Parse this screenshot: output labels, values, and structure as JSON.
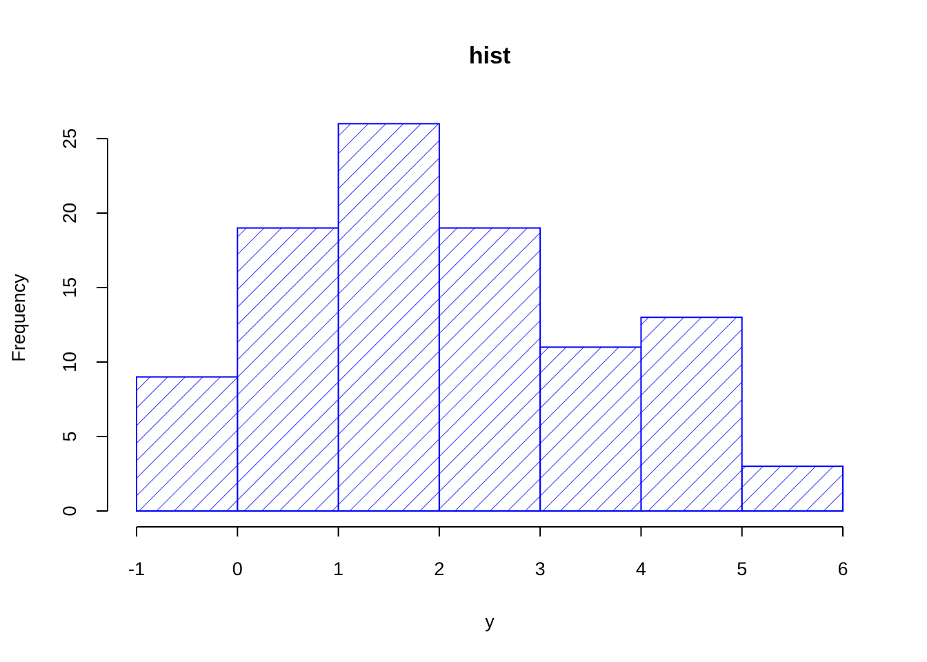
{
  "chart_data": {
    "type": "bar",
    "subtype": "histogram",
    "title": "hist",
    "xlabel": "y",
    "ylabel": "Frequency",
    "bins": [
      {
        "from": -1,
        "to": 0,
        "count": 9
      },
      {
        "from": 0,
        "to": 1,
        "count": 19
      },
      {
        "from": 1,
        "to": 2,
        "count": 26
      },
      {
        "from": 2,
        "to": 3,
        "count": 19
      },
      {
        "from": 3,
        "to": 4,
        "count": 11
      },
      {
        "from": 4,
        "to": 5,
        "count": 13
      },
      {
        "from": 5,
        "to": 6,
        "count": 3
      }
    ],
    "xlim": [
      -1,
      6
    ],
    "ylim": [
      0,
      26
    ],
    "xticks": [
      "-1",
      "0",
      "1",
      "2",
      "3",
      "4",
      "5",
      "6"
    ],
    "yticks": [
      "0",
      "5",
      "10",
      "15",
      "20",
      "25"
    ],
    "bar_color": "#0000ff",
    "fill_pattern": "diagonal-hatch",
    "grid": false,
    "legend": false
  }
}
